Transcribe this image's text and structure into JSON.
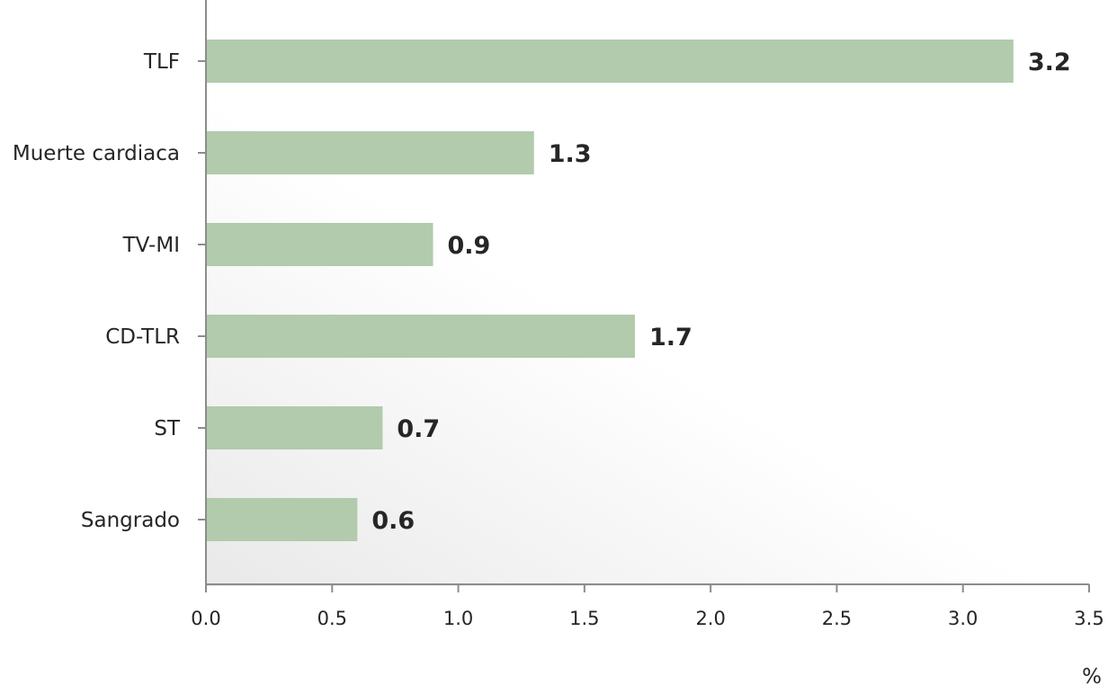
{
  "chart_data": {
    "type": "bar",
    "orientation": "horizontal",
    "categories": [
      "TLF",
      "Muerte cardiaca",
      "TV-MI",
      "CD-TLR",
      "ST",
      "Sangrado"
    ],
    "values": [
      3.2,
      1.3,
      0.9,
      1.7,
      0.7,
      0.6
    ],
    "data_labels": [
      "3.2",
      "1.3",
      "0.9",
      "1.7",
      "0.7",
      "0.6"
    ],
    "xlabel": "%",
    "ylabel": "",
    "xlim": [
      0,
      3.5
    ],
    "xticks": [
      0.0,
      0.5,
      1.0,
      1.5,
      2.0,
      2.5,
      3.0,
      3.5
    ],
    "xtick_labels": [
      "0.0",
      "0.5",
      "1.0",
      "1.5",
      "2.0",
      "2.5",
      "3.0",
      "3.5"
    ],
    "grid": false,
    "legend": "none",
    "colors": {
      "bar": "#b1cbac",
      "axis": "#8c8c8c",
      "text": "#262626",
      "plot_gradient_start": "#e9e9e9",
      "plot_gradient_end": "#ffffff"
    }
  }
}
